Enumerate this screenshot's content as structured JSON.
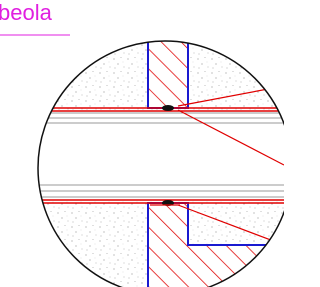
{
  "title": "beola"
}
